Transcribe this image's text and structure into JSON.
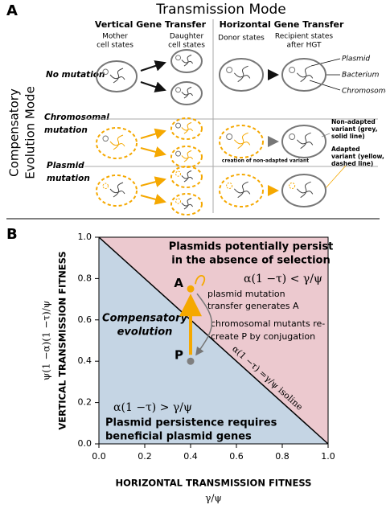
{
  "panel_a": {
    "label": "A",
    "title": "Transmission Mode",
    "columns": [
      {
        "title": "Vertical Gene Transfer",
        "subtitles": [
          [
            "Mother",
            "cell states"
          ],
          [
            "Daughter",
            "cell states"
          ]
        ]
      },
      {
        "title": "Horizontal Gene Transfer",
        "subtitles": [
          [
            "Donor states"
          ],
          [
            "Recipient states",
            "after HGT"
          ]
        ]
      }
    ],
    "row_axis_title": [
      "Compensatory",
      "Evolution Mode"
    ],
    "rows": [
      [
        "No mutation"
      ],
      [
        "Chromosomal",
        "mutation"
      ],
      [
        "Plasmid",
        "mutation"
      ]
    ],
    "legend": {
      "parts": [
        "Plasmid",
        "Bacterium",
        "Chromosome"
      ],
      "non_adapted": [
        "Non-adapted",
        "variant (grey,",
        "solid line)"
      ],
      "adapted": [
        "Adapted",
        "variant (yellow,",
        "dashed line)"
      ]
    },
    "note": "creation of non-adapted variant"
  },
  "chart_data": {
    "type": "scatter",
    "label": "B",
    "xlabel": [
      "HORIZONTAL TRANSMISSION FITNESS",
      "γ/ψ"
    ],
    "ylabel": [
      "VERTICAL TRANSMISSION FITNESS",
      "ψ(1 −α)(1 −τ)/ψ"
    ],
    "xlim": [
      0,
      1
    ],
    "ylim": [
      0,
      1
    ],
    "xticks": [
      {
        "value": 0,
        "label": "0.0"
      },
      0.2,
      0.4,
      0.6,
      0.8,
      {
        "value": 1,
        "label": "1.0"
      }
    ],
    "yticks": [
      {
        "value": 0,
        "label": "0.0"
      },
      0.2,
      0.4,
      0.6,
      0.8,
      {
        "value": 1,
        "label": "1.0"
      }
    ],
    "points": {
      "labels": [
        "P",
        "A"
      ],
      "x": [
        0.4,
        0.4
      ],
      "values": [
        0.4,
        0.75
      ],
      "colors": [
        "#7f7f7f",
        "#f5a800"
      ]
    },
    "isoline": {
      "label": "α(1 −τ) =γ/ψ  isoline",
      "x": [
        0,
        1
      ],
      "values": [
        1,
        0
      ]
    },
    "regions": {
      "above": {
        "color": "#ecc9cf",
        "title": [
          "Plasmids potentially persist",
          "in the absence of selection"
        ],
        "condition": "α(1 −τ) < γ/ψ"
      },
      "below": {
        "color": "#c5d5e4",
        "title": [
          "Plasmid persistence requires",
          "beneficial plasmid genes"
        ],
        "condition": "α(1 −τ) > γ/ψ"
      }
    },
    "annotations": {
      "compensatory": [
        "Compensatory",
        "evolution"
      ],
      "plasmid_mutation": [
        "plasmid mutation",
        "transfer generates A"
      ],
      "chromosomal_mutants": [
        "chromosomal mutants re-",
        "create P by conjugation"
      ]
    }
  }
}
